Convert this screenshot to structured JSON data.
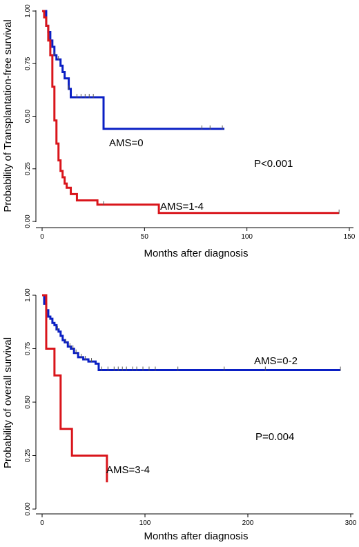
{
  "colors": {
    "blue": "#0a1fc4",
    "red": "#d9151b"
  },
  "chart_data": [
    {
      "type": "line",
      "subtype": "kaplan-meier-step",
      "ylabel": "Probability of Transplantation-free survival",
      "xlabel": "Months after diagnosis",
      "xlim": [
        0,
        150
      ],
      "ylim": [
        0,
        1
      ],
      "xticks": [
        "0",
        "50",
        "100",
        "150"
      ],
      "yticks": [
        "0.00",
        "0.25",
        "0.50",
        "0.75",
        "1.00"
      ],
      "annotations": [
        "AMS=0",
        "P<0.001",
        "AMS=1-4"
      ],
      "series": [
        {
          "name": "AMS=0",
          "color": "#0a1fc4",
          "steps": [
            [
              0,
              1.0
            ],
            [
              2,
              0.93
            ],
            [
              3,
              0.9
            ],
            [
              4,
              0.86
            ],
            [
              5,
              0.83
            ],
            [
              6,
              0.79
            ],
            [
              7,
              0.77
            ],
            [
              9,
              0.74
            ],
            [
              10,
              0.71
            ],
            [
              11,
              0.68
            ],
            [
              13,
              0.63
            ],
            [
              14,
              0.59
            ],
            [
              30,
              0.44
            ],
            [
              89,
              0.44
            ]
          ],
          "censored": [
            [
              6,
              0.79
            ],
            [
              8,
              0.77
            ],
            [
              13,
              0.63
            ],
            [
              17,
              0.59
            ],
            [
              19,
              0.59
            ],
            [
              21,
              0.59
            ],
            [
              23,
              0.59
            ],
            [
              25,
              0.59
            ],
            [
              78,
              0.44
            ],
            [
              82,
              0.44
            ],
            [
              88,
              0.44
            ]
          ]
        },
        {
          "name": "AMS=1-4",
          "color": "#d9151b",
          "steps": [
            [
              0,
              1.0
            ],
            [
              1,
              0.97
            ],
            [
              2,
              0.93
            ],
            [
              3,
              0.86
            ],
            [
              4,
              0.79
            ],
            [
              5,
              0.64
            ],
            [
              6,
              0.48
            ],
            [
              7,
              0.37
            ],
            [
              8,
              0.29
            ],
            [
              9,
              0.24
            ],
            [
              10,
              0.21
            ],
            [
              11,
              0.18
            ],
            [
              12,
              0.16
            ],
            [
              14,
              0.13
            ],
            [
              17,
              0.1
            ],
            [
              27,
              0.08
            ],
            [
              57,
              0.04
            ],
            [
              145,
              0.04
            ]
          ],
          "censored": [
            [
              30,
              0.08
            ],
            [
              145,
              0.04
            ]
          ]
        }
      ]
    },
    {
      "type": "line",
      "subtype": "kaplan-meier-step",
      "ylabel": "Probability of overall survival",
      "xlabel": "Months after diagnosis",
      "xlim": [
        0,
        300
      ],
      "ylim": [
        0,
        1
      ],
      "xticks": [
        "0",
        "100",
        "200",
        "300"
      ],
      "yticks": [
        "0.00",
        "0.25",
        "0.50",
        "0.75",
        "1.00"
      ],
      "annotations": [
        "AMS=0-2",
        "P=0.004",
        "AMS=3-4"
      ],
      "series": [
        {
          "name": "AMS=0-2",
          "color": "#0a1fc4",
          "steps": [
            [
              0,
              1.0
            ],
            [
              2,
              0.96
            ],
            [
              4,
              0.93
            ],
            [
              6,
              0.9
            ],
            [
              8,
              0.89
            ],
            [
              10,
              0.87
            ],
            [
              12,
              0.86
            ],
            [
              14,
              0.84
            ],
            [
              16,
              0.83
            ],
            [
              18,
              0.81
            ],
            [
              20,
              0.79
            ],
            [
              22,
              0.78
            ],
            [
              25,
              0.76
            ],
            [
              28,
              0.75
            ],
            [
              31,
              0.73
            ],
            [
              35,
              0.71
            ],
            [
              40,
              0.7
            ],
            [
              45,
              0.69
            ],
            [
              52,
              0.68
            ],
            [
              55,
              0.65
            ],
            [
              290,
              0.65
            ]
          ],
          "censored": [
            [
              15,
              0.84
            ],
            [
              23,
              0.78
            ],
            [
              27,
              0.76
            ],
            [
              30,
              0.75
            ],
            [
              33,
              0.73
            ],
            [
              38,
              0.71
            ],
            [
              42,
              0.7
            ],
            [
              48,
              0.69
            ],
            [
              58,
              0.65
            ],
            [
              64,
              0.65
            ],
            [
              70,
              0.65
            ],
            [
              74,
              0.65
            ],
            [
              78,
              0.65
            ],
            [
              82,
              0.65
            ],
            [
              88,
              0.65
            ],
            [
              92,
              0.65
            ],
            [
              98,
              0.65
            ],
            [
              104,
              0.65
            ],
            [
              110,
              0.65
            ],
            [
              132,
              0.65
            ],
            [
              177,
              0.65
            ],
            [
              217,
              0.65
            ],
            [
              290,
              0.65
            ]
          ]
        },
        {
          "name": "AMS=3-4",
          "color": "#d9151b",
          "steps": [
            [
              0,
              1.0
            ],
            [
              4,
              0.75
            ],
            [
              12,
              0.625
            ],
            [
              18,
              0.375
            ],
            [
              29,
              0.25
            ],
            [
              63,
              0.125
            ]
          ],
          "censored": []
        }
      ]
    }
  ]
}
